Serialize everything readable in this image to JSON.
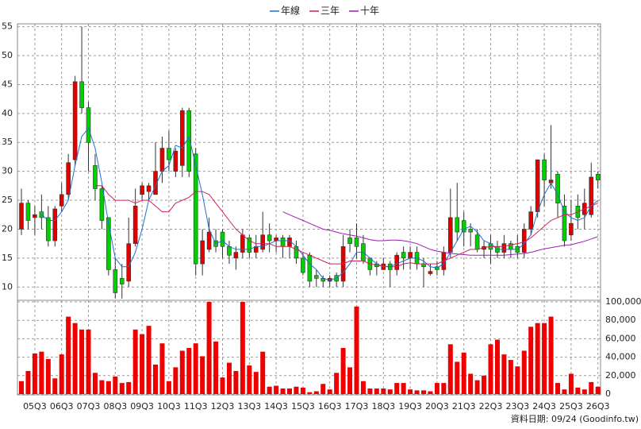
{
  "chart_data": {
    "type": "candlestick",
    "legend": "top",
    "grid": true,
    "footer": "資料日期: 09/24 (Goodinfo.tw)",
    "up_color": "#e00000",
    "down_color": "#00d000",
    "volume_color": "#ee0000",
    "categories": [
      null,
      null,
      "05Q3",
      null,
      null,
      null,
      "06Q3",
      null,
      null,
      null,
      "07Q3",
      null,
      null,
      null,
      "08Q3",
      null,
      null,
      null,
      "09Q3",
      null,
      null,
      null,
      "10Q3",
      null,
      null,
      null,
      "11Q3",
      null,
      null,
      null,
      "12Q3",
      null,
      null,
      null,
      "13Q3",
      null,
      null,
      null,
      "14Q3",
      null,
      null,
      null,
      "15Q3",
      null,
      null,
      null,
      "16Q3",
      null,
      null,
      null,
      "17Q3",
      null,
      null,
      null,
      "18Q3",
      null,
      null,
      null,
      "19Q3",
      null,
      null,
      null,
      "20Q3",
      null,
      null,
      null,
      "21Q3",
      null,
      null,
      null,
      "22Q3",
      null,
      null,
      null,
      "23Q3",
      null,
      null,
      null,
      "24Q3",
      null,
      null,
      null,
      "25Q3",
      null,
      null,
      null,
      "26Q3"
    ],
    "open": [
      20,
      24.5,
      22,
      23,
      22,
      18,
      24,
      26,
      32,
      45.5,
      41,
      31,
      27,
      22,
      13,
      11.5,
      11,
      17.5,
      26,
      26.5,
      26,
      30,
      34,
      30,
      31,
      40.5,
      33,
      14,
      16.5,
      18,
      19.5,
      17,
      15,
      16,
      18.5,
      16,
      16.5,
      19,
      18,
      18.5,
      17,
      17,
      15,
      15.5,
      12,
      11.5,
      11,
      12,
      11,
      18.5,
      18.5,
      17.5,
      15,
      14,
      13,
      14,
      13,
      16,
      15,
      16,
      14,
      12.3,
      13.5,
      13,
      16,
      22,
      21.5,
      20,
      19,
      16.5,
      17.5,
      17,
      16,
      17.5,
      17,
      16,
      20,
      23,
      32,
      28,
      29.5,
      24,
      19,
      24,
      22.5,
      22.5,
      29.5
    ],
    "high": [
      27,
      25,
      24,
      26,
      24,
      24,
      28,
      33,
      46.5,
      55,
      42,
      33,
      27.5,
      22,
      15,
      14,
      22,
      27,
      28,
      28,
      35,
      36,
      37,
      34,
      41,
      41,
      34,
      20,
      22,
      20,
      20,
      18,
      17,
      20,
      19,
      19,
      23,
      21,
      19,
      19,
      19,
      18,
      16,
      16,
      13,
      12,
      12,
      12.5,
      19,
      20,
      21,
      19,
      15,
      14.5,
      15,
      14.5,
      16,
      17,
      17,
      17,
      15,
      14,
      14.5,
      17,
      27,
      28,
      23,
      21,
      20,
      18,
      19,
      18,
      19,
      18,
      19,
      21,
      24,
      32,
      33,
      38,
      30,
      26,
      25,
      26,
      27,
      31.5,
      30
    ],
    "low": [
      19,
      20,
      19,
      20,
      17,
      17,
      23,
      25,
      31,
      40,
      30,
      25,
      20,
      12,
      8,
      8,
      10,
      17,
      25,
      25,
      26,
      28,
      30,
      29,
      29,
      29,
      12,
      12,
      16,
      16,
      15,
      14,
      13,
      15,
      15,
      15,
      16,
      16,
      16,
      15,
      15,
      14,
      12,
      10,
      10,
      10,
      10,
      10,
      10,
      16,
      15,
      14,
      12,
      12,
      13,
      10,
      12,
      13,
      13,
      13,
      10,
      12,
      12,
      12,
      15,
      18,
      17,
      17,
      16,
      15,
      14,
      15,
      15,
      15,
      15,
      15,
      19,
      22,
      24,
      27,
      22,
      17,
      18,
      20,
      20,
      22,
      27
    ],
    "close": [
      24.5,
      21.5,
      22.5,
      22,
      18,
      23.5,
      26,
      31.5,
      45.5,
      41,
      35,
      27,
      21.5,
      13,
      9,
      10.5,
      17.5,
      24,
      27.5,
      27.5,
      30,
      34,
      32,
      33.5,
      40.5,
      30,
      14,
      18,
      19.5,
      17,
      17,
      15.5,
      16,
      19,
      16,
      17,
      19,
      18,
      18.5,
      17,
      18.5,
      15,
      12.5,
      11,
      11.5,
      11,
      11.5,
      11,
      17,
      17.5,
      17,
      14.5,
      13,
      13.5,
      14,
      13,
      15.5,
      15,
      16,
      14,
      13.5,
      12.7,
      13,
      16,
      22,
      19.5,
      19.5,
      19.5,
      16.5,
      17,
      16.5,
      16,
      17.5,
      16.5,
      16,
      20,
      23,
      32,
      28.5,
      28.5,
      24.5,
      18,
      21,
      22,
      24.5,
      29,
      28.5
    ],
    "volume": [
      14000,
      25000,
      44000,
      46000,
      38000,
      17000,
      43000,
      84000,
      77000,
      70000,
      70000,
      23000,
      15000,
      14000,
      19000,
      12000,
      13000,
      70000,
      65000,
      74000,
      32000,
      55000,
      14000,
      29000,
      47000,
      50000,
      55000,
      41000,
      100000,
      57000,
      18000,
      34000,
      25000,
      100000,
      31000,
      24000,
      46000,
      8000,
      9000,
      6000,
      6000,
      8000,
      7000,
      2000,
      3000,
      11000,
      5000,
      23000,
      50000,
      29000,
      95000,
      14000,
      6000,
      6000,
      6000,
      5000,
      12000,
      12000,
      5000,
      4000,
      4000,
      3000,
      12000,
      12000,
      54000,
      35000,
      45000,
      22000,
      15000,
      20000,
      54000,
      59000,
      43000,
      37000,
      30000,
      47000,
      73000,
      77000,
      77000,
      84000,
      12000,
      5000,
      22000,
      7000,
      5000,
      13000,
      8000
    ],
    "lines": [
      {
        "name": "年線",
        "color": "#1f6fd0",
        "values": [
          null,
          null,
          null,
          22.5,
          21.5,
          21.5,
          23,
          25,
          31,
          36,
          37.5,
          34,
          28,
          21,
          15,
          13.5,
          13.5,
          16,
          20,
          25,
          27.5,
          30,
          31,
          34.5,
          34,
          36,
          31,
          26,
          20,
          17.5,
          18,
          17,
          16.5,
          16.5,
          16.5,
          17,
          17,
          17.5,
          18,
          18,
          18,
          17,
          15.5,
          14,
          13,
          11.5,
          11.2,
          11.5,
          12.5,
          14,
          16,
          16,
          15,
          14,
          13.5,
          13.5,
          14,
          14.5,
          15,
          15,
          14.5,
          13.5,
          13.3,
          14,
          16,
          18,
          20,
          20.5,
          19.5,
          18,
          17.5,
          16.5,
          16.5,
          16.5,
          16.5,
          17.5,
          19,
          23,
          26,
          28,
          26,
          23,
          22,
          21.5,
          22,
          24,
          25
        ]
      },
      {
        "name": "三年",
        "color": "#d0205a",
        "values": [
          null,
          null,
          null,
          null,
          null,
          null,
          null,
          null,
          null,
          null,
          null,
          27.5,
          27.5,
          26,
          25,
          25,
          25,
          24.5,
          25,
          25,
          24,
          23,
          23,
          24.5,
          25,
          25.5,
          26.5,
          26.5,
          26,
          24.5,
          23,
          21.5,
          20,
          19,
          18,
          17.5,
          17.5,
          17.5,
          17,
          17,
          17,
          16.5,
          16,
          15.5,
          15,
          14.5,
          14,
          14,
          14,
          14.5,
          14.5,
          14.5,
          14,
          13.8,
          13.6,
          13.5,
          13.5,
          14,
          14.2,
          14,
          14,
          14,
          14,
          14.5,
          15,
          15.5,
          16,
          16.5,
          16.5,
          16.8,
          17,
          17,
          17,
          17.3,
          17.5,
          17.8,
          18.5,
          19.5,
          20.5,
          21.5,
          22,
          22.5,
          22.5,
          23,
          23.5,
          24,
          24.5
        ]
      },
      {
        "name": "十年",
        "color": "#9a1fb0",
        "values": [
          null,
          null,
          null,
          null,
          null,
          null,
          null,
          null,
          null,
          null,
          null,
          null,
          null,
          null,
          null,
          null,
          null,
          null,
          null,
          null,
          null,
          null,
          null,
          null,
          null,
          null,
          null,
          null,
          null,
          null,
          null,
          null,
          null,
          null,
          null,
          null,
          null,
          null,
          null,
          23,
          22.5,
          22,
          21.5,
          21,
          20.5,
          20,
          19.8,
          19.5,
          19.2,
          19,
          18.8,
          18.5,
          18.2,
          18,
          18,
          18.1,
          18.1,
          18,
          17.8,
          17.5,
          17,
          16.5,
          16.2,
          16,
          15.8,
          15.7,
          15.6,
          15.5,
          15.5,
          15.5,
          15.5,
          15.5,
          15.5,
          15.6,
          15.7,
          15.8,
          16,
          16.3,
          16.6,
          16.8,
          17,
          17.2,
          17.3,
          17.6,
          17.9,
          18.3,
          18.7
        ]
      }
    ],
    "ylim": [
      7.7,
      55.5
    ],
    "yticks": [
      10,
      15,
      20,
      25,
      30,
      35,
      40,
      45,
      50,
      55
    ],
    "y2lim": [
      0,
      100000
    ],
    "y2ticks": [
      0,
      {
        "value": 20000,
        "label": "20,000"
      },
      {
        "value": 40000,
        "label": "40,000"
      },
      {
        "value": 60000,
        "label": "60,000"
      },
      {
        "value": 80000,
        "label": "80,000"
      },
      {
        "value": 100000,
        "label": "100,000"
      }
    ]
  }
}
